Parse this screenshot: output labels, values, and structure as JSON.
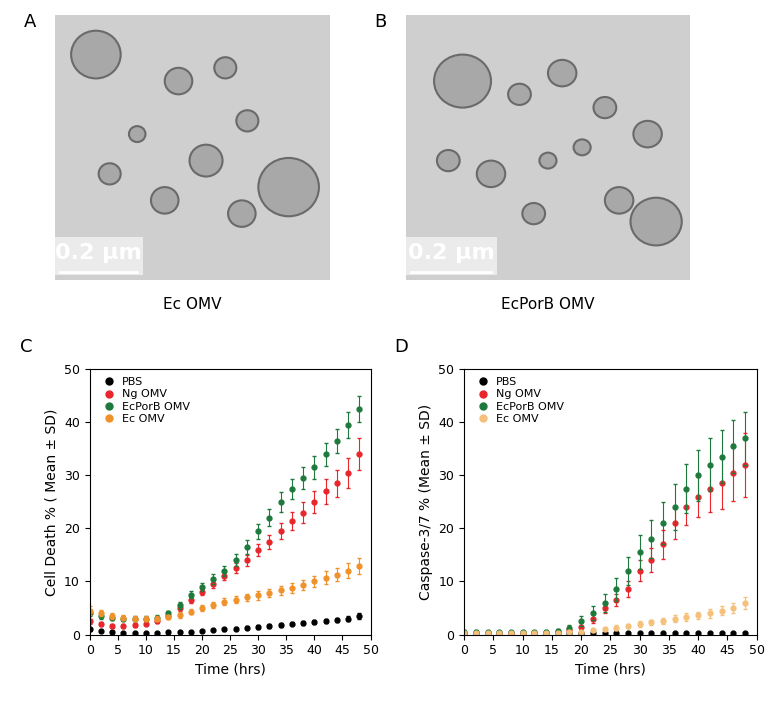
{
  "images": [
    {
      "panel": "A",
      "caption": "Ec OMV",
      "scale_bar": "0.2 μm"
    },
    {
      "panel": "B",
      "caption": "EcPorB OMV",
      "scale_bar": "0.2 μm"
    }
  ],
  "chart_data": [
    {
      "type": "line",
      "panel": "C",
      "x_label": "Time (hrs)",
      "y_label": "Cell Death % ( Mean ± SD)",
      "x": [
        0,
        2,
        4,
        6,
        8,
        10,
        12,
        14,
        16,
        18,
        20,
        22,
        24,
        26,
        28,
        30,
        32,
        34,
        36,
        38,
        40,
        42,
        44,
        46,
        48
      ],
      "xlim": [
        0,
        50
      ],
      "xticks": [
        0,
        5,
        10,
        15,
        20,
        25,
        30,
        35,
        40,
        45,
        50
      ],
      "ylim": [
        0,
        50
      ],
      "yticks": [
        0,
        10,
        20,
        30,
        40,
        50
      ],
      "legend": "upper left",
      "marker": "circle",
      "series": [
        {
          "name": "PBS",
          "color": "#000000",
          "values": [
            1.0,
            0.6,
            0.4,
            0.3,
            0.3,
            0.3,
            0.3,
            0.4,
            0.5,
            0.5,
            0.6,
            0.8,
            1.0,
            1.1,
            1.3,
            1.4,
            1.6,
            1.8,
            2.0,
            2.1,
            2.3,
            2.5,
            2.7,
            3.0,
            3.5
          ],
          "errors": [
            0.3,
            0.2,
            0.2,
            0.2,
            0.2,
            0.2,
            0.2,
            0.2,
            0.2,
            0.2,
            0.2,
            0.2,
            0.3,
            0.3,
            0.3,
            0.3,
            0.3,
            0.3,
            0.3,
            0.4,
            0.4,
            0.4,
            0.4,
            0.5,
            0.6
          ]
        },
        {
          "name": "Ng OMV",
          "color": "#e8262b",
          "values": [
            2.5,
            2.0,
            1.6,
            1.6,
            1.8,
            2.0,
            2.5,
            3.5,
            5.0,
            6.5,
            8.0,
            9.5,
            11.0,
            12.5,
            14.0,
            16.0,
            17.5,
            19.5,
            21.5,
            23.0,
            25.0,
            27.0,
            28.5,
            30.5,
            34.0
          ],
          "errors": [
            0.5,
            0.4,
            0.3,
            0.3,
            0.3,
            0.3,
            0.4,
            0.4,
            0.5,
            0.5,
            0.6,
            0.7,
            0.8,
            0.9,
            1.0,
            1.1,
            1.3,
            1.5,
            1.7,
            1.9,
            2.1,
            2.4,
            2.6,
            2.8,
            3.0
          ]
        },
        {
          "name": "EcPorB OMV",
          "color": "#1e7a3c",
          "values": [
            4.0,
            3.5,
            3.2,
            3.0,
            3.0,
            3.0,
            3.2,
            4.0,
            5.5,
            7.5,
            9.0,
            10.5,
            12.0,
            14.0,
            16.5,
            19.5,
            22.0,
            25.0,
            27.5,
            29.5,
            31.5,
            34.0,
            36.5,
            39.5,
            42.5
          ],
          "errors": [
            0.6,
            0.5,
            0.4,
            0.4,
            0.4,
            0.4,
            0.4,
            0.5,
            0.6,
            0.7,
            0.8,
            0.9,
            1.0,
            1.1,
            1.3,
            1.4,
            1.6,
            1.8,
            1.9,
            2.0,
            2.1,
            2.2,
            2.3,
            2.4,
            2.5
          ]
        },
        {
          "name": "Ec OMV",
          "color": "#f0922b",
          "values": [
            4.5,
            4.0,
            3.5,
            3.2,
            3.0,
            3.0,
            3.0,
            3.3,
            3.7,
            4.3,
            5.0,
            5.6,
            6.2,
            6.6,
            7.0,
            7.4,
            7.8,
            8.3,
            8.8,
            9.3,
            10.0,
            10.7,
            11.3,
            12.0,
            13.0
          ],
          "errors": [
            0.8,
            0.6,
            0.5,
            0.4,
            0.4,
            0.4,
            0.4,
            0.4,
            0.5,
            0.5,
            0.5,
            0.6,
            0.6,
            0.7,
            0.7,
            0.8,
            0.8,
            0.9,
            0.9,
            1.0,
            1.1,
            1.2,
            1.3,
            1.4,
            1.5
          ]
        }
      ]
    },
    {
      "type": "line",
      "panel": "D",
      "x_label": "Time (hrs)",
      "y_label": "Caspase-3/7 % (Mean ± SD)",
      "x": [
        0,
        2,
        4,
        6,
        8,
        10,
        12,
        14,
        16,
        18,
        20,
        22,
        24,
        26,
        28,
        30,
        32,
        34,
        36,
        38,
        40,
        42,
        44,
        46,
        48
      ],
      "xlim": [
        0,
        50
      ],
      "xticks": [
        0,
        5,
        10,
        15,
        20,
        25,
        30,
        35,
        40,
        45,
        50
      ],
      "ylim": [
        0,
        50
      ],
      "yticks": [
        0,
        10,
        20,
        30,
        40,
        50
      ],
      "legend": "upper left",
      "marker": "circle",
      "series": [
        {
          "name": "PBS",
          "color": "#000000",
          "values": [
            0.2,
            0.2,
            0.2,
            0.2,
            0.2,
            0.2,
            0.2,
            0.2,
            0.2,
            0.2,
            0.2,
            0.2,
            0.2,
            0.2,
            0.2,
            0.2,
            0.2,
            0.2,
            0.2,
            0.2,
            0.2,
            0.2,
            0.2,
            0.2,
            0.2
          ],
          "errors": [
            0.1,
            0.1,
            0.1,
            0.1,
            0.1,
            0.1,
            0.1,
            0.1,
            0.1,
            0.1,
            0.1,
            0.1,
            0.1,
            0.1,
            0.1,
            0.1,
            0.1,
            0.1,
            0.1,
            0.1,
            0.1,
            0.1,
            0.1,
            0.1,
            0.1
          ]
        },
        {
          "name": "Ng OMV",
          "color": "#e8262b",
          "values": [
            0.3,
            0.3,
            0.3,
            0.3,
            0.3,
            0.3,
            0.3,
            0.3,
            0.5,
            0.8,
            1.5,
            3.0,
            5.0,
            6.5,
            8.5,
            12.0,
            14.0,
            17.0,
            21.0,
            24.0,
            26.0,
            27.5,
            28.5,
            30.5,
            32.0
          ],
          "errors": [
            0.2,
            0.2,
            0.2,
            0.2,
            0.2,
            0.2,
            0.2,
            0.2,
            0.3,
            0.4,
            0.6,
            0.8,
            1.0,
            1.2,
            1.5,
            2.0,
            2.3,
            2.7,
            3.0,
            3.4,
            3.8,
            4.3,
            4.8,
            5.4,
            6.0
          ]
        },
        {
          "name": "EcPorB OMV",
          "color": "#1e7a3c",
          "values": [
            0.5,
            0.5,
            0.4,
            0.4,
            0.4,
            0.4,
            0.4,
            0.5,
            0.7,
            1.2,
            2.5,
            4.0,
            6.0,
            8.5,
            12.0,
            15.5,
            18.0,
            21.0,
            24.0,
            27.5,
            30.0,
            32.0,
            33.5,
            35.5,
            37.0
          ],
          "errors": [
            0.3,
            0.3,
            0.2,
            0.2,
            0.2,
            0.2,
            0.2,
            0.3,
            0.4,
            0.6,
            0.9,
            1.3,
            1.7,
            2.2,
            2.7,
            3.2,
            3.6,
            4.0,
            4.3,
            4.6,
            4.8,
            5.0,
            5.0,
            5.0,
            5.0
          ]
        },
        {
          "name": "Ec OMV",
          "color": "#f5c07a",
          "values": [
            0.2,
            0.2,
            0.2,
            0.2,
            0.2,
            0.2,
            0.2,
            0.2,
            0.3,
            0.4,
            0.5,
            0.8,
            1.0,
            1.3,
            1.6,
            2.0,
            2.3,
            2.6,
            3.0,
            3.3,
            3.6,
            4.0,
            4.5,
            5.0,
            6.0
          ],
          "errors": [
            0.1,
            0.1,
            0.1,
            0.1,
            0.1,
            0.1,
            0.1,
            0.1,
            0.1,
            0.2,
            0.2,
            0.3,
            0.3,
            0.4,
            0.4,
            0.5,
            0.5,
            0.6,
            0.6,
            0.7,
            0.7,
            0.8,
            0.9,
            1.0,
            1.1
          ]
        }
      ]
    }
  ]
}
